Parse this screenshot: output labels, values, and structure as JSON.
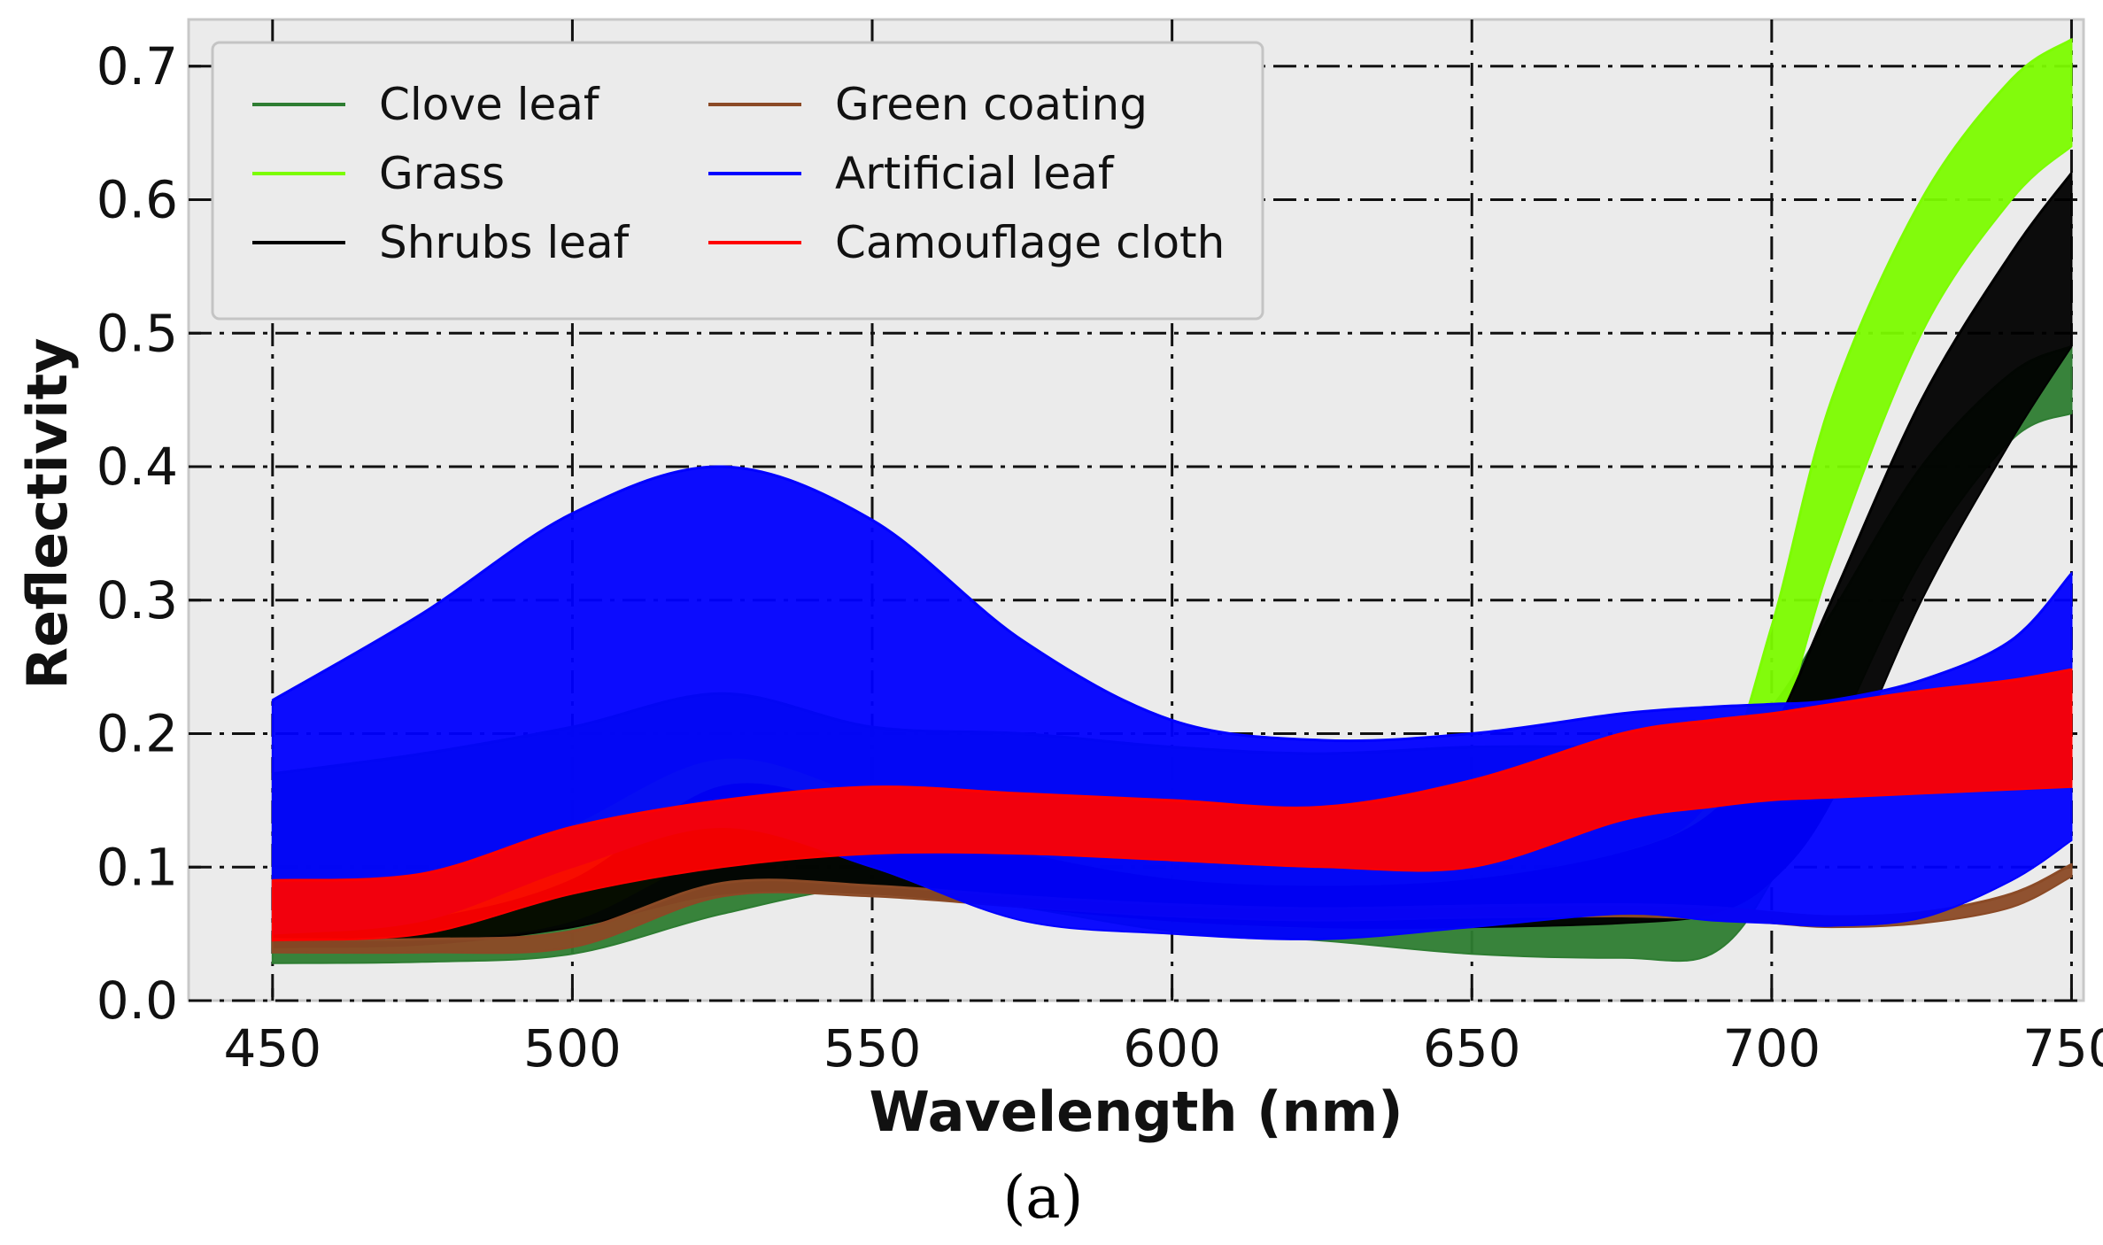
{
  "chart_data": {
    "type": "line",
    "title": "",
    "xlabel": "Wavelength (nm)",
    "ylabel": "Reflectivity",
    "xlim": [
      436,
      752
    ],
    "ylim": [
      0.0,
      0.735
    ],
    "xticks": [
      450,
      500,
      550,
      600,
      650,
      700,
      750
    ],
    "yticks": [
      0.0,
      0.1,
      0.2,
      0.3,
      0.4,
      0.5,
      0.6,
      0.7
    ],
    "xtick_labels": [
      "450",
      "500",
      "550",
      "600",
      "650",
      "700",
      "750"
    ],
    "ytick_labels": [
      "0.0",
      "0.1",
      "0.2",
      "0.3",
      "0.4",
      "0.5",
      "0.6",
      "0.7"
    ],
    "grid": true,
    "legend_position": "top-left",
    "caption": "(a)",
    "x": [
      450,
      475,
      500,
      525,
      550,
      575,
      600,
      625,
      650,
      675,
      690,
      700,
      710,
      725,
      740,
      750
    ],
    "series": [
      {
        "name": "Clove leaf",
        "color": "#2e7d32",
        "low": [
          0.028,
          0.029,
          0.035,
          0.065,
          0.085,
          0.07,
          0.052,
          0.045,
          0.035,
          0.032,
          0.035,
          0.09,
          0.19,
          0.33,
          0.42,
          0.44
        ],
        "high": [
          0.17,
          0.185,
          0.205,
          0.23,
          0.205,
          0.2,
          0.19,
          0.185,
          0.19,
          0.19,
          0.19,
          0.22,
          0.29,
          0.4,
          0.47,
          0.49
        ]
      },
      {
        "name": "Grass",
        "color": "#7cfc00",
        "low": [
          0.04,
          0.045,
          0.06,
          0.11,
          0.11,
          0.085,
          0.062,
          0.055,
          0.06,
          0.07,
          0.085,
          0.18,
          0.33,
          0.5,
          0.6,
          0.64
        ],
        "high": [
          0.06,
          0.08,
          0.13,
          0.18,
          0.15,
          0.11,
          0.085,
          0.08,
          0.09,
          0.11,
          0.15,
          0.28,
          0.45,
          0.6,
          0.69,
          0.72
        ]
      },
      {
        "name": "Shrubs leaf",
        "color": "#000000",
        "low": [
          0.04,
          0.042,
          0.055,
          0.08,
          0.08,
          0.07,
          0.06,
          0.055,
          0.055,
          0.058,
          0.065,
          0.09,
          0.15,
          0.3,
          0.42,
          0.49
        ],
        "high": [
          0.05,
          0.06,
          0.09,
          0.16,
          0.14,
          0.11,
          0.09,
          0.085,
          0.09,
          0.11,
          0.14,
          0.2,
          0.3,
          0.45,
          0.56,
          0.62
        ]
      },
      {
        "name": "Green coating",
        "color": "#8b4a26",
        "low": [
          0.036,
          0.036,
          0.04,
          0.078,
          0.078,
          0.07,
          0.063,
          0.06,
          0.062,
          0.063,
          0.061,
          0.058,
          0.055,
          0.058,
          0.07,
          0.093
        ],
        "high": [
          0.046,
          0.046,
          0.052,
          0.088,
          0.086,
          0.078,
          0.072,
          0.069,
          0.071,
          0.072,
          0.07,
          0.066,
          0.063,
          0.066,
          0.08,
          0.102
        ]
      },
      {
        "name": "Artificial leaf",
        "color": "#0000ff",
        "low": [
          0.05,
          0.06,
          0.1,
          0.13,
          0.1,
          0.06,
          0.05,
          0.046,
          0.055,
          0.065,
          0.06,
          0.058,
          0.056,
          0.062,
          0.09,
          0.12
        ],
        "high": [
          0.225,
          0.29,
          0.365,
          0.4,
          0.36,
          0.27,
          0.21,
          0.195,
          0.2,
          0.215,
          0.22,
          0.222,
          0.225,
          0.24,
          0.27,
          0.32
        ]
      },
      {
        "name": "Camouflage cloth",
        "color": "#ff0000",
        "low": [
          0.045,
          0.05,
          0.08,
          0.1,
          0.11,
          0.11,
          0.105,
          0.1,
          0.1,
          0.135,
          0.145,
          0.15,
          0.152,
          0.155,
          0.158,
          0.16
        ],
        "high": [
          0.09,
          0.095,
          0.13,
          0.15,
          0.16,
          0.155,
          0.15,
          0.145,
          0.165,
          0.2,
          0.21,
          0.215,
          0.222,
          0.232,
          0.24,
          0.248
        ]
      }
    ]
  }
}
